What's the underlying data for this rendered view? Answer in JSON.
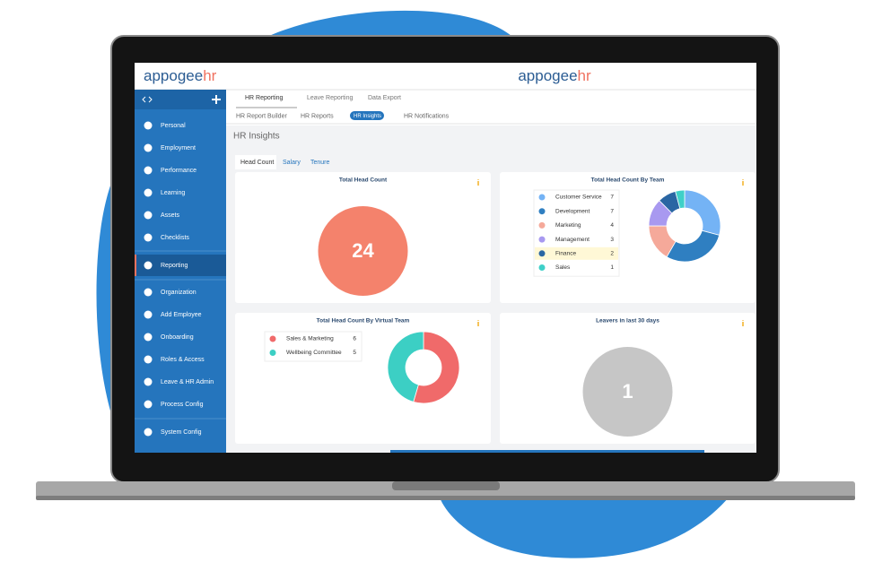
{
  "logo": {
    "main": "appogee",
    "accent": "hr"
  },
  "sidebar": {
    "items": [
      "Personal",
      "Employment",
      "Performance",
      "Learning",
      "Assets",
      "Checklists",
      "Reporting",
      "Organization",
      "Add Employee",
      "Onboarding",
      "Roles & Access",
      "Leave & HR Admin",
      "Process Config",
      "System Config"
    ],
    "active": 6
  },
  "tabs": {
    "items": [
      "HR Reporting",
      "Leave Reporting",
      "Data Export"
    ],
    "active": 0
  },
  "subtabs": {
    "items": [
      "HR Report Builder",
      "HR Reports",
      "HR Insights",
      "HR Notifications"
    ],
    "active": 2
  },
  "page_title": "HR Insights",
  "insight_tabs": {
    "items": [
      "Head Count",
      "Salary",
      "Tenure"
    ],
    "active": 0
  },
  "cards": [
    {
      "title": "Total Head Count",
      "value": 24,
      "color": "#f4826c"
    },
    {
      "title": "Total Head Count By Team",
      "items": [
        {
          "name": "Customer Service",
          "value": 7,
          "color": "#74b3f5"
        },
        {
          "name": "Development",
          "value": 7,
          "color": "#2f7fc1"
        },
        {
          "name": "Marketing",
          "value": 4,
          "color": "#f5a99a"
        },
        {
          "name": "Management",
          "value": 3,
          "color": "#a899f0"
        },
        {
          "name": "Finance",
          "value": 2,
          "color": "#2a66a3"
        },
        {
          "name": "Sales",
          "value": 1,
          "color": "#3fd0c8"
        }
      ],
      "highlight": 4
    },
    {
      "title": "Total Head Count By Virtual Team",
      "items": [
        {
          "name": "Sales & Marketing",
          "value": 6,
          "color": "#f06a6a"
        },
        {
          "name": "Wellbeing Committee",
          "value": 5,
          "color": "#3ccfc4"
        }
      ]
    },
    {
      "title": "Leavers in last 30 days",
      "value": 1,
      "color": "#c6c6c6"
    }
  ]
}
